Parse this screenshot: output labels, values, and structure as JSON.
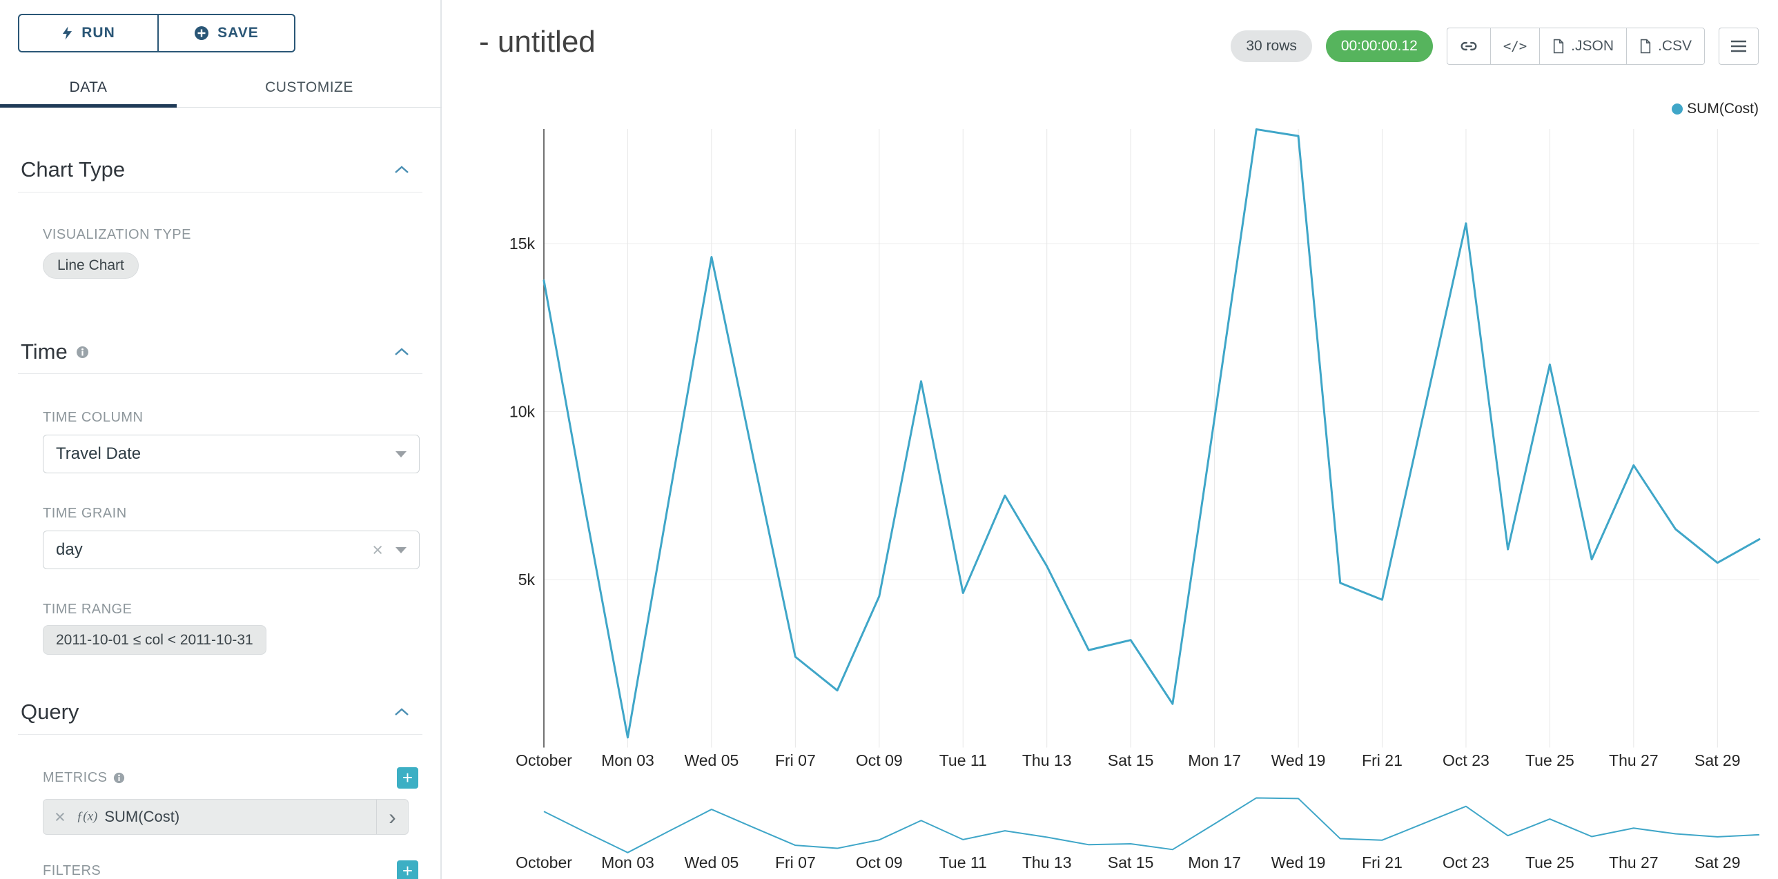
{
  "colors": {
    "line": "#3FA6C8",
    "accent_teal": "#3CAFC4",
    "navy_button": "#2A5676",
    "tab_underline": "#1F3B57",
    "timer_green": "#56B45D",
    "section_chevron_blue": "#4A8FB3"
  },
  "icons": {
    "clear_icon": "×",
    "chevron_right_icon": "›",
    "plus_icon": "+",
    "code_icon": "</>"
  },
  "sidebar": {
    "run_button": "RUN",
    "save_button": "SAVE",
    "tabs": [
      {
        "label": "DATA",
        "active": true
      },
      {
        "label": "CUSTOMIZE",
        "active": false
      }
    ],
    "chart_type": {
      "title": "Chart Type",
      "visualization_type_label": "VISUALIZATION TYPE",
      "visualization_type_value": "Line Chart"
    },
    "time": {
      "title": "Time",
      "time_column_label": "TIME COLUMN",
      "time_column_value": "Travel Date",
      "time_grain_label": "TIME GRAIN",
      "time_grain_value": "day",
      "time_range_label": "TIME RANGE",
      "time_range_value": "2011-10-01 ≤ col < 2011-10-31"
    },
    "query": {
      "title": "Query",
      "metrics_label": "METRICS",
      "metric_fx": "ƒ(x)",
      "metric_value": "SUM(Cost)",
      "filters_label": "FILTERS"
    }
  },
  "header": {
    "title": "- untitled",
    "rows_badge": "30 rows",
    "timer_badge": "00:00:00.12",
    "json_button": ".JSON",
    "csv_button": ".CSV"
  },
  "chart_data": {
    "type": "line",
    "title": "",
    "legend_position": "top-right",
    "grid": true,
    "legend": [
      {
        "label": "SUM(Cost)",
        "color": "#3FA6C8"
      }
    ],
    "x": [
      "2011-10-01",
      "2011-10-02",
      "2011-10-03",
      "2011-10-04",
      "2011-10-05",
      "2011-10-06",
      "2011-10-07",
      "2011-10-08",
      "2011-10-09",
      "2011-10-10",
      "2011-10-11",
      "2011-10-12",
      "2011-10-13",
      "2011-10-14",
      "2011-10-15",
      "2011-10-16",
      "2011-10-17",
      "2011-10-18",
      "2011-10-19",
      "2011-10-20",
      "2011-10-21",
      "2011-10-22",
      "2011-10-23",
      "2011-10-24",
      "2011-10-25",
      "2011-10-26",
      "2011-10-27",
      "2011-10-28",
      "2011-10-29",
      "2011-10-30"
    ],
    "series": [
      {
        "name": "SUM(Cost)",
        "values": [
          13900,
          7000,
          300,
          7500,
          14600,
          8600,
          2700,
          1700,
          4500,
          10900,
          4600,
          7500,
          5400,
          2900,
          3200,
          1300,
          9800,
          18400,
          18200,
          4900,
          4400,
          10000,
          15600,
          5900,
          11400,
          5600,
          8400,
          6500,
          5500,
          6200
        ]
      }
    ],
    "x_tick_labels": [
      "October",
      "Mon 03",
      "Wed 05",
      "Fri 07",
      "Oct 09",
      "Tue 11",
      "Thu 13",
      "Sat 15",
      "Mon 17",
      "Wed 19",
      "Fri 21",
      "Oct 23",
      "Tue 25",
      "Thu 27",
      "Sat 29"
    ],
    "y_ticks": [
      5000,
      10000,
      15000
    ],
    "y_tick_labels": [
      "5k",
      "10k",
      "15k"
    ],
    "ylim": [
      0,
      18500
    ],
    "xlabel": "",
    "ylabel": "",
    "has_range_selector": true
  }
}
